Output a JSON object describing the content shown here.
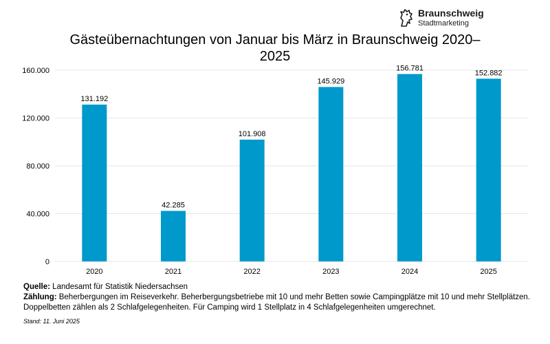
{
  "logo": {
    "name": "Braunschweig",
    "sub": "Stadtmarketing",
    "icon": "lion-icon",
    "color": "#1a1a1a"
  },
  "title": "Gästeübernachtungen von Januar bis März in Braunschweig 2020–2025",
  "chart_data": {
    "type": "bar",
    "title": "Gästeübernachtungen von Januar bis März in Braunschweig 2020–2025",
    "categories": [
      "2020",
      "2021",
      "2022",
      "2023",
      "2024",
      "2025"
    ],
    "values": [
      131192,
      42285,
      101908,
      145929,
      156781,
      152882
    ],
    "value_labels": [
      "131.192",
      "42.285",
      "101.908",
      "145.929",
      "156.781",
      "152.882"
    ],
    "ylim": [
      0,
      160000
    ],
    "yticks": [
      0,
      40000,
      80000,
      120000,
      160000
    ],
    "ytick_labels": [
      "0",
      "40.000",
      "80.000",
      "120.000",
      "160.000"
    ],
    "xlabel": "",
    "ylabel": "",
    "grid": true,
    "bar_color": "#0099cc",
    "grid_color": "#e6e6e6"
  },
  "footer": {
    "source_label": "Quelle:",
    "source_text": " Landesamt für Statistik Niedersachsen",
    "count_label": "Zählung:",
    "count_text": " Beherbergungen im Reiseverkehr. Beherbergungsbetriebe mit 10 und mehr Betten sowie Campingplätze mit 10 und mehr Stellplätzen. Doppelbetten zählen als 2 Schlafgelegenheiten. Für Camping wird 1 Stellplatz in 4 Schlafgelegenheiten umgerechnet.",
    "stand": "Stand: 11. Juni 2025"
  }
}
